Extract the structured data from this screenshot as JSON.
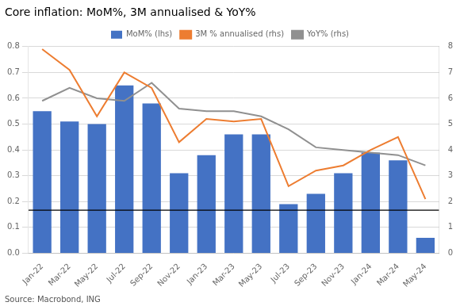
{
  "chart_data": {
    "type": "bar",
    "title": "Core inflation: MoM%, 3M annualised & YoY%",
    "source": "Source: Macrobond, ING",
    "categories": [
      "Jan-22",
      "Mar-22",
      "May-22",
      "Jul-22",
      "Sep-22",
      "Nov-22",
      "Jan-23",
      "Mar-23",
      "May-23",
      "Jul-23",
      "Sep-23",
      "Nov-23",
      "Jan-24",
      "Mar-24",
      "May-24"
    ],
    "series": [
      {
        "name": "MoM% (lhs)",
        "type": "bar",
        "color": "#4472C4",
        "values": [
          0.55,
          0.51,
          0.5,
          0.65,
          0.58,
          0.31,
          0.38,
          0.46,
          0.46,
          0.19,
          0.23,
          0.31,
          0.39,
          0.36,
          0.06
        ]
      },
      {
        "name": "3M % annualised (rhs)",
        "type": "line",
        "color": "#ED7D31",
        "axis": "y2",
        "values": [
          7.9,
          7.1,
          5.3,
          7.0,
          6.4,
          4.3,
          5.2,
          5.1,
          5.2,
          2.6,
          3.2,
          3.4,
          4.0,
          4.5,
          2.1
        ]
      },
      {
        "name": "YoY% (rhs)",
        "type": "line",
        "color": "#909090",
        "axis": "y2",
        "values": [
          5.9,
          6.4,
          6.0,
          5.9,
          6.6,
          5.6,
          5.5,
          5.5,
          5.3,
          4.8,
          4.1,
          4.0,
          3.9,
          3.8,
          3.4
        ]
      }
    ],
    "ylim": [
      0.0,
      0.8
    ],
    "yticks": [
      {
        "value": 0.0,
        "label": "0.0"
      },
      0.1,
      0.2,
      0.3,
      0.4,
      0.5,
      0.6,
      0.7,
      0.8
    ],
    "y2lim": [
      0,
      8
    ],
    "y2ticks": [
      0,
      1,
      2,
      3,
      4,
      5,
      6,
      7,
      8
    ],
    "hline": {
      "y": 0.1667,
      "color": "#000000"
    },
    "grid": true,
    "legend": "top"
  }
}
